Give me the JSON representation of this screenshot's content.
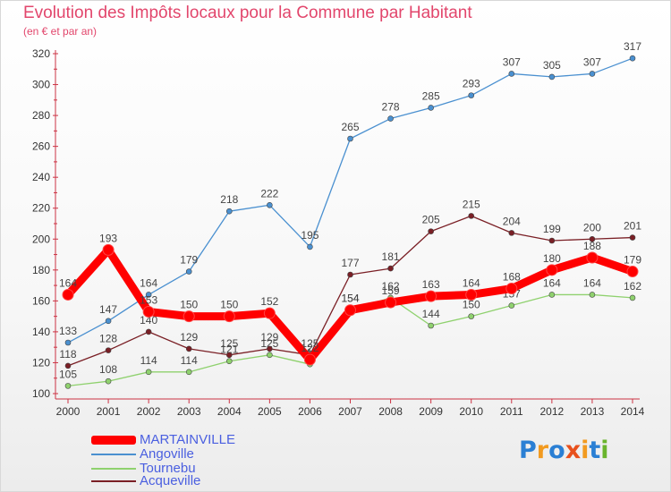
{
  "title": "Evolution des Impôts locaux pour la Commune par Habitant",
  "subtitle": "(en € et par an)",
  "logo": {
    "letters": [
      "P",
      "r",
      "o",
      "x",
      "i",
      "t",
      "i"
    ],
    "colors": [
      "#2a7fd4",
      "#f29a1f",
      "#2a7fd4",
      "#e8501c",
      "#f29a1f",
      "#2a7fd4",
      "#69b42c"
    ]
  },
  "chart_data": {
    "type": "line",
    "x": [
      "2000",
      "2001",
      "2002",
      "2003",
      "2004",
      "2005",
      "2006",
      "2007",
      "2008",
      "2009",
      "2010",
      "2011",
      "2012",
      "2013",
      "2014"
    ],
    "ylim": [
      100,
      320
    ],
    "yticks": [
      100,
      120,
      140,
      160,
      180,
      200,
      220,
      240,
      260,
      280,
      300,
      320
    ],
    "grid": false,
    "legend_position": "bottom-left",
    "series": [
      {
        "name": "Tournebu",
        "color": "#8fd16e",
        "values": [
          105,
          108,
          114,
          114,
          121,
          125,
          119,
          154,
          162,
          144,
          150,
          157,
          164,
          164,
          162
        ],
        "labels": [
          "105",
          "108",
          "114",
          "114",
          "121",
          "125",
          "119",
          "154",
          "162",
          "144",
          "150",
          "157",
          "164",
          "164",
          "162"
        ]
      },
      {
        "name": "Acqueville",
        "color": "#7a1f25",
        "values": [
          118,
          128,
          140,
          129,
          125,
          129,
          125,
          177,
          181,
          205,
          215,
          204,
          199,
          200,
          201
        ],
        "labels": [
          "118",
          "128",
          "140",
          "129",
          "125",
          "129",
          "125",
          "177",
          "181",
          "205",
          "215",
          "204",
          "199",
          "200",
          "201"
        ]
      },
      {
        "name": "Angoville",
        "color": "#4a90d0",
        "values": [
          133,
          147,
          164,
          179,
          218,
          222,
          195,
          265,
          278,
          285,
          293,
          307,
          305,
          307,
          317
        ],
        "labels": [
          "133",
          "147",
          "164",
          "179",
          "218",
          "222",
          "195",
          "265",
          "278",
          "285",
          "293",
          "307",
          "305",
          "307",
          "317"
        ]
      },
      {
        "name": "MARTAINVILLE",
        "color": "#ff0000",
        "values": [
          164,
          193,
          153,
          150,
          150,
          152,
          122,
          154,
          159,
          163,
          164,
          168,
          180,
          188,
          179
        ],
        "labels": [
          "164",
          "193",
          "153",
          "150",
          "150",
          "152",
          "122",
          "154",
          "159",
          "163",
          "164",
          "168",
          "180",
          "188",
          "179"
        ]
      }
    ]
  },
  "legend": {
    "items": [
      {
        "label": "MARTAINVILLE",
        "color": "#ff0000"
      },
      {
        "label": "Angoville",
        "color": "#4a90d0"
      },
      {
        "label": "Tournebu",
        "color": "#8fd16e"
      },
      {
        "label": "Acqueville",
        "color": "#7a1f25"
      }
    ]
  }
}
